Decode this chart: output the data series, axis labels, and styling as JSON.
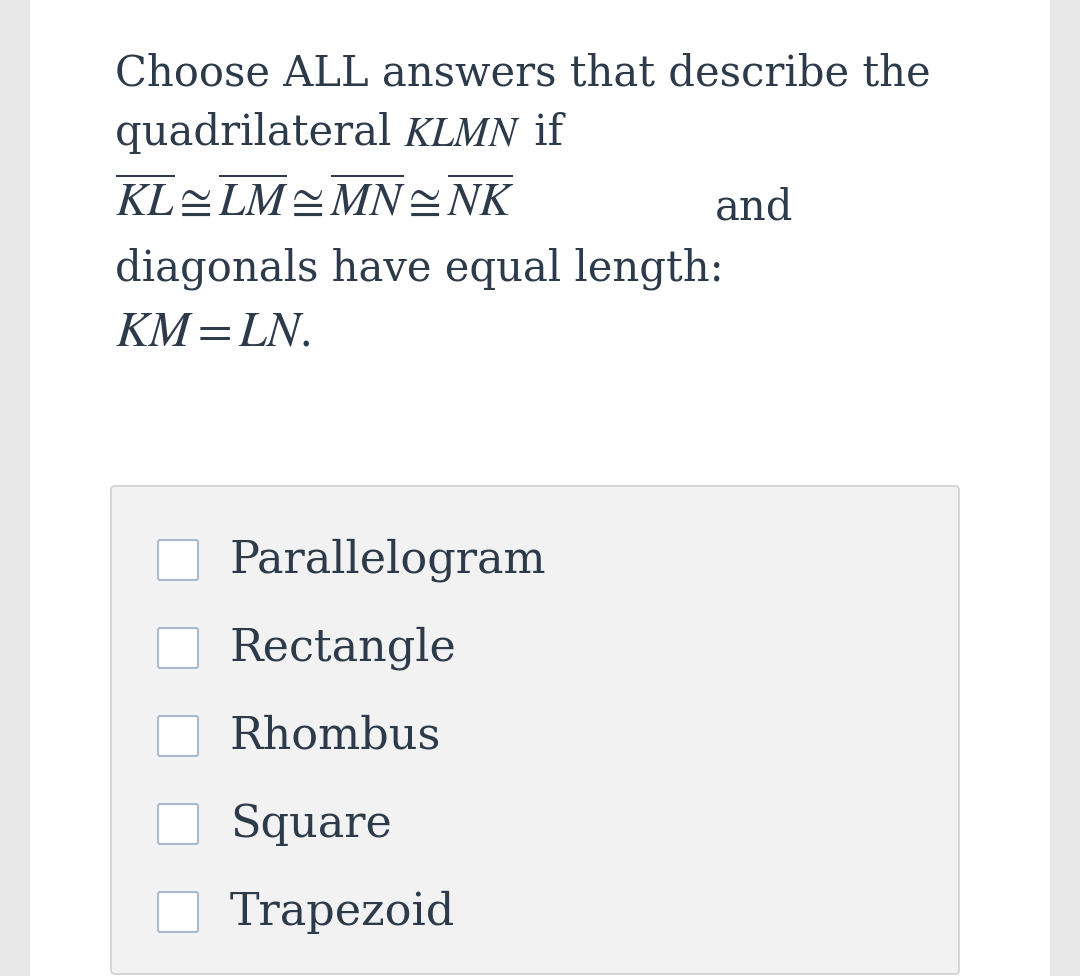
{
  "bg_color": "#e8e8e8",
  "content_bg": "#ffffff",
  "panel_color": "#f2f2f2",
  "text_color": "#2d3a4a",
  "checkbox_color": "#ffffff",
  "checkbox_border": "#aabbcc",
  "options": [
    "Parallelogram",
    "Rectangle",
    "Rhombus",
    "Square",
    "Trapezoid"
  ],
  "font_size_title": 30,
  "font_size_options": 32,
  "font_size_math": 34
}
